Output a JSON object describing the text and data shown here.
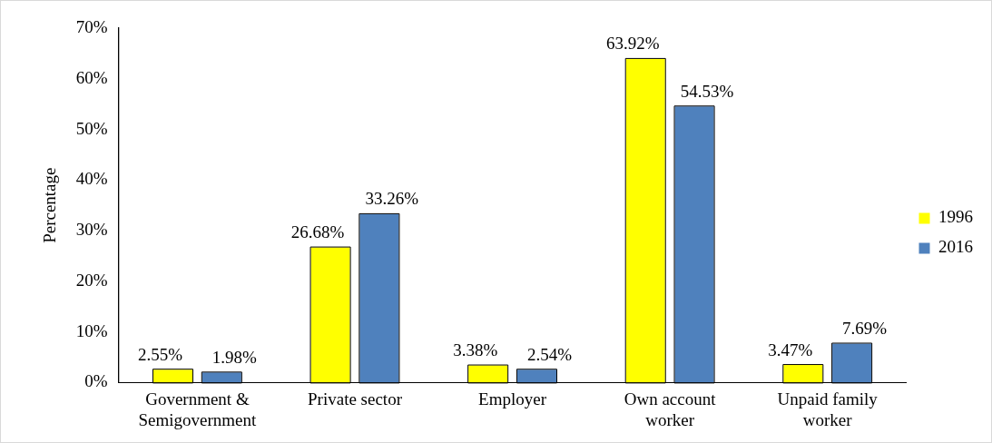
{
  "chart_data": {
    "type": "bar",
    "ylabel": "Percentage",
    "categories": [
      "Government &\nSemigovernment",
      "Private sector",
      "Employer",
      "Own account\nworker",
      "Unpaid family\nworker"
    ],
    "series": [
      {
        "name": "1996",
        "color": "#ffff00",
        "values": [
          2.55,
          26.68,
          3.38,
          63.92,
          3.47
        ],
        "value_labels": [
          "2.55%",
          "26.68%",
          "3.38%",
          "63.92%",
          "3.47%"
        ]
      },
      {
        "name": "2016",
        "color": "#4f81bd",
        "values": [
          1.98,
          33.26,
          2.54,
          54.53,
          7.69
        ],
        "value_labels": [
          "1.98%",
          "33.26%",
          "2.54%",
          "54.53%",
          "7.69%"
        ]
      }
    ],
    "ylim": [
      0,
      70
    ],
    "yticks": [
      {
        "value": 0,
        "label": "0%"
      },
      {
        "value": 10,
        "label": "10%"
      },
      {
        "value": 20,
        "label": "20%"
      },
      {
        "value": 30,
        "label": "30%"
      },
      {
        "value": 40,
        "label": "40%"
      },
      {
        "value": 50,
        "label": "50%"
      },
      {
        "value": 60,
        "label": "60%"
      },
      {
        "value": 70,
        "label": "70%"
      }
    ],
    "grid": false,
    "legend": "right"
  }
}
